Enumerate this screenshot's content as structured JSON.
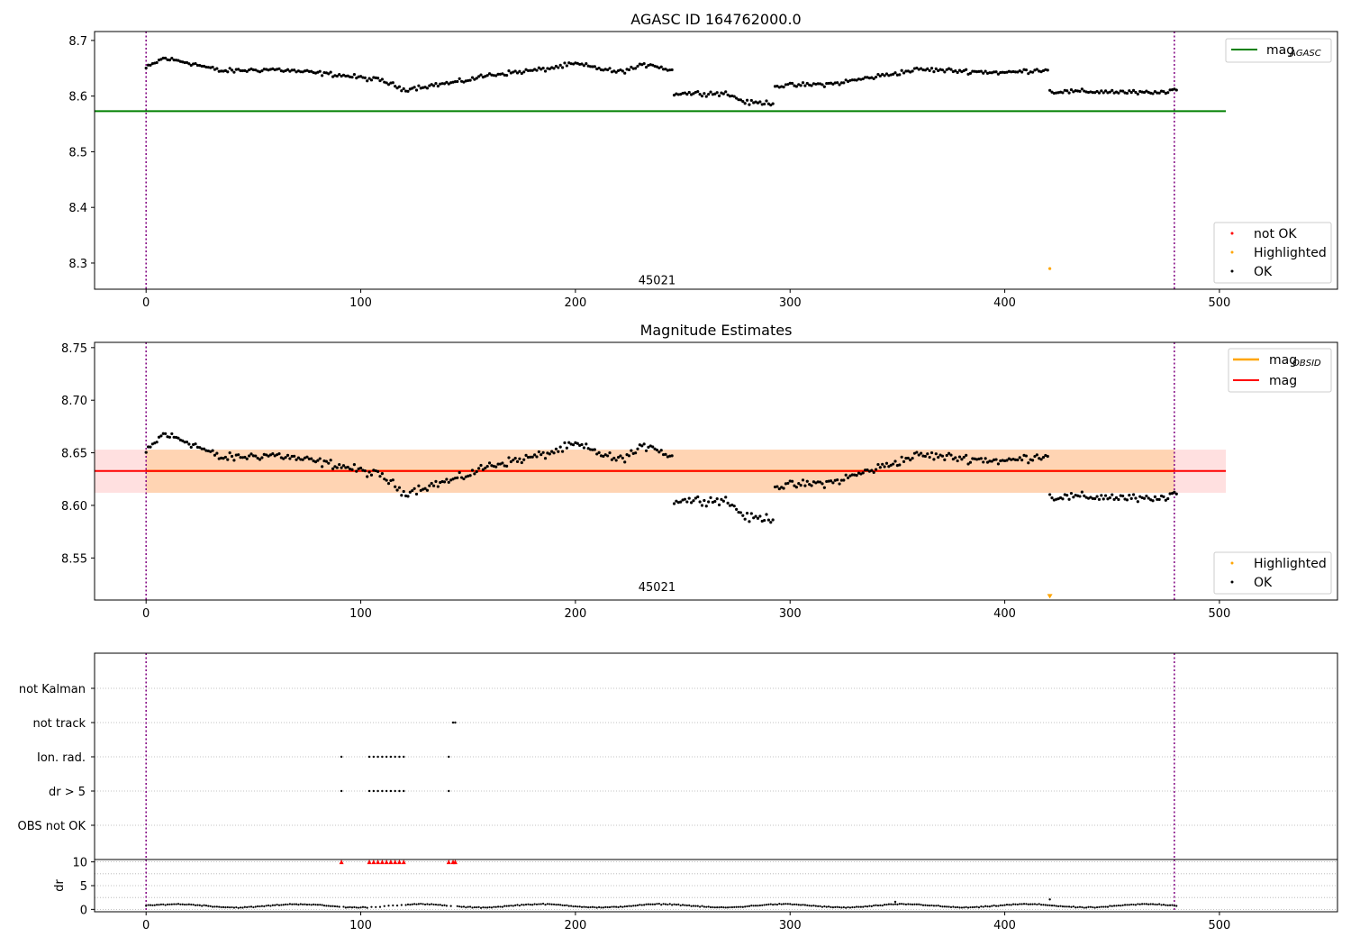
{
  "chart_data": [
    {
      "type": "scatter",
      "title": "AGASC ID 164762000.0",
      "xlim": [
        -24,
        555
      ],
      "ylim": [
        8.253,
        8.716
      ],
      "x_ticks": [
        0,
        100,
        200,
        300,
        400,
        500
      ],
      "y_ticks": [
        "8.3",
        "8.4",
        "8.5",
        "8.6",
        "8.7"
      ],
      "vlines": [
        0,
        479
      ],
      "hline": {
        "name": "mag",
        "subscript": "AGASC",
        "y": 8.573,
        "x_range": [
          -24,
          503
        ],
        "color": "#008000"
      },
      "annotation": {
        "text": "45021",
        "x": 238,
        "y": 8.268
      },
      "highlighted_points": [
        {
          "x": 421,
          "y": 8.29
        }
      ],
      "series": [
        {
          "name": "not OK",
          "color": "#ff0000"
        },
        {
          "name": "Highlighted",
          "color": "#ffa500"
        },
        {
          "name": "OK",
          "color": "#000000"
        }
      ],
      "ok_profile": [
        [
          0,
          8.65
        ],
        [
          8,
          8.668
        ],
        [
          20,
          8.66
        ],
        [
          35,
          8.645
        ],
        [
          60,
          8.648
        ],
        [
          90,
          8.638
        ],
        [
          110,
          8.628
        ],
        [
          120,
          8.612
        ],
        [
          138,
          8.622
        ],
        [
          145,
          8.625
        ],
        [
          160,
          8.638
        ],
        [
          185,
          8.648
        ],
        [
          200,
          8.658
        ],
        [
          220,
          8.643
        ],
        [
          235,
          8.658
        ],
        [
          245,
          8.645
        ],
        [
          246,
          8.605
        ],
        [
          270,
          8.605
        ],
        [
          280,
          8.588
        ],
        [
          292,
          8.588
        ],
        [
          293,
          8.618
        ],
        [
          320,
          8.622
        ],
        [
          340,
          8.635
        ],
        [
          360,
          8.648
        ],
        [
          400,
          8.642
        ],
        [
          420,
          8.648
        ],
        [
          421,
          8.608
        ],
        [
          450,
          8.608
        ],
        [
          470,
          8.605
        ],
        [
          480,
          8.612
        ]
      ]
    },
    {
      "type": "scatter",
      "title": "Magnitude Estimates",
      "xlim": [
        -24,
        555
      ],
      "ylim": [
        8.51,
        8.755
      ],
      "x_ticks": [
        0,
        100,
        200,
        300,
        400,
        500
      ],
      "y_ticks": [
        "8.55",
        "8.60",
        "8.65",
        "8.70",
        "8.75"
      ],
      "vlines": [
        0,
        479
      ],
      "mag_obsid": {
        "name": "mag",
        "subscript": "OBSID",
        "y": 8.6327,
        "band": [
          8.612,
          8.653
        ],
        "x_range": [
          -24,
          503
        ],
        "color": "#ffa500"
      },
      "mag": {
        "name": "mag",
        "y": 8.6327,
        "band": [
          8.612,
          8.653
        ],
        "x_range": [
          -24,
          503
        ],
        "color": "#ff0000"
      },
      "annotation": {
        "text": "45021",
        "x": 238,
        "y": 8.522
      },
      "highlighted_points": [
        {
          "x": 421,
          "y": 8.514
        }
      ],
      "series": [
        {
          "name": "Highlighted",
          "color": "#ffa500"
        },
        {
          "name": "OK",
          "color": "#000000"
        }
      ]
    },
    {
      "type": "scatter",
      "title": "",
      "xlim": [
        -24,
        555
      ],
      "categories": [
        "not Kalman",
        "not track",
        "Ion. rad.",
        "dr > 5",
        "OBS not OK"
      ],
      "flags": {
        "not track": [
          143,
          144
        ],
        "Ion. rad.": [
          91,
          104,
          106,
          108,
          110,
          112,
          114,
          116,
          118,
          120,
          141
        ],
        "dr > 5": [
          91,
          104,
          106,
          108,
          110,
          112,
          114,
          116,
          118,
          120,
          141
        ],
        "OBS not OK": []
      },
      "vlines": [
        0,
        479
      ]
    },
    {
      "type": "scatter",
      "title": "",
      "xlim": [
        -24,
        555
      ],
      "ylim": [
        -0.5,
        10.5
      ],
      "ylabel": "dr",
      "x_ticks": [
        0,
        100,
        200,
        300,
        400,
        500
      ],
      "y_ticks": [
        "0",
        "5",
        "10"
      ],
      "capped_points": [
        91,
        104,
        106,
        108,
        110,
        112,
        114,
        116,
        118,
        120,
        141,
        143,
        144
      ],
      "outliers": [
        {
          "x": 349,
          "y": 1.6
        },
        {
          "x": 421,
          "y": 2.1
        }
      ],
      "vlines": [
        0,
        479
      ]
    }
  ]
}
